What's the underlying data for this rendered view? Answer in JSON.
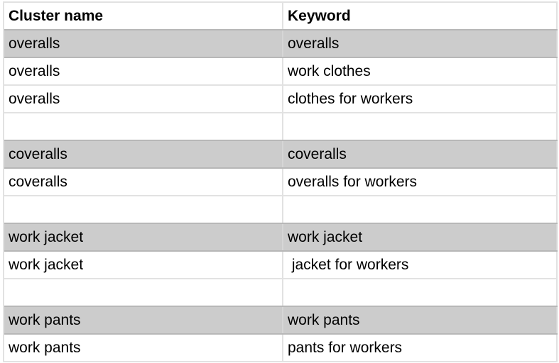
{
  "columns": [
    "Cluster name",
    "Keyword"
  ],
  "rows": [
    {
      "cluster": "overalls",
      "keyword": "overalls",
      "highlighted": true
    },
    {
      "cluster": "overalls",
      "keyword": "work clothes",
      "highlighted": false
    },
    {
      "cluster": "overalls",
      "keyword": "clothes for workers",
      "highlighted": false
    },
    {
      "cluster": "",
      "keyword": "",
      "highlighted": false
    },
    {
      "cluster": "coveralls",
      "keyword": "coveralls",
      "highlighted": true
    },
    {
      "cluster": "coveralls",
      "keyword": "overalls for workers",
      "highlighted": false
    },
    {
      "cluster": "",
      "keyword": "",
      "highlighted": false
    },
    {
      "cluster": "work jacket",
      "keyword": "work jacket",
      "highlighted": true
    },
    {
      "cluster": "work jacket",
      "keyword": " jacket for workers",
      "highlighted": false
    },
    {
      "cluster": "",
      "keyword": "",
      "highlighted": false
    },
    {
      "cluster": "work pants",
      "keyword": "work pants",
      "highlighted": true
    },
    {
      "cluster": "work pants",
      "keyword": "pants for workers",
      "highlighted": false
    }
  ],
  "colors": {
    "highlight": "#cccccc",
    "gridline": "#e2e2e2",
    "highlight_border": "#b7b7b7"
  }
}
